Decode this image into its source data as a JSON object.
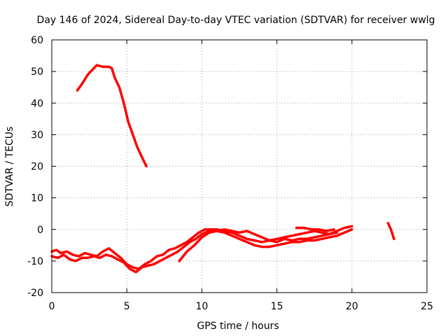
{
  "chart_data": {
    "type": "line",
    "title": "Day 146 of 2024, Sidereal Day-to-day VTEC variation (SDTVAR) for receiver wwlg",
    "xlabel": "GPS time / hours",
    "ylabel": "SDTVAR / TECUs",
    "xlim": [
      0,
      25
    ],
    "ylim": [
      -20,
      60
    ],
    "xticks": [
      "0",
      "5",
      "10",
      "15",
      "20",
      "25"
    ],
    "yticks": [
      "-20",
      "-10",
      "0",
      "10",
      "20",
      "30",
      "40",
      "50",
      "60"
    ],
    "grid": true,
    "series": [
      {
        "name": "early-track",
        "color": "#ff0000",
        "x": [
          1.7,
          2.0,
          2.4,
          2.8,
          3.0,
          3.4,
          3.8,
          4.0,
          4.2,
          4.5,
          4.8,
          5.1,
          5.4,
          5.7,
          6.0,
          6.3
        ],
        "y": [
          44,
          46,
          49,
          51,
          52,
          51.5,
          51.5,
          51,
          48,
          45,
          40,
          34,
          30,
          26,
          23,
          20
        ]
      },
      {
        "name": "main-track-a",
        "color": "#ff0000",
        "x": [
          0,
          0.3,
          0.6,
          1.0,
          1.4,
          1.8,
          2.2,
          2.6,
          3.0,
          3.4,
          3.8,
          4.2,
          4.6,
          5.0,
          5.4,
          5.8,
          6.2,
          6.6,
          7.0,
          7.4,
          7.8,
          8.2,
          8.6,
          9.0,
          9.4,
          9.8,
          10.2,
          10.6,
          11.0,
          11.5,
          12.0,
          12.5,
          13.0,
          13.5,
          14.0,
          14.5,
          15.0,
          15.5,
          16.0,
          16.5,
          17.0,
          17.5,
          18.0,
          18.5,
          19.0,
          19.5,
          20.0
        ],
        "y": [
          -7,
          -6.5,
          -7.5,
          -7,
          -8,
          -8.5,
          -7.5,
          -8,
          -8.5,
          -7,
          -6,
          -7.5,
          -9,
          -11,
          -12,
          -12.5,
          -11,
          -10,
          -8.5,
          -8,
          -6.5,
          -6,
          -5,
          -4,
          -2.5,
          -1,
          0,
          0,
          0,
          -0.5,
          -1,
          -2,
          -3,
          -3.5,
          -4,
          -3.5,
          -4,
          -3,
          -3.5,
          -3,
          -3,
          -2.5,
          -2,
          -1.5,
          -0.5,
          0.5,
          1
        ]
      },
      {
        "name": "main-track-b",
        "color": "#ff0000",
        "x": [
          0,
          0.4,
          0.8,
          1.2,
          1.6,
          2.0,
          2.4,
          2.8,
          3.2,
          3.6,
          4.0,
          4.4,
          4.8,
          5.2,
          5.6,
          6.0,
          6.4,
          6.8,
          7.2,
          7.6,
          8.0,
          8.4,
          8.8,
          9.2,
          9.6,
          10.0,
          10.5,
          11.0,
          11.5,
          12.0,
          12.5,
          13.0,
          13.5,
          14.0,
          14.5,
          15.0,
          15.5,
          16.0,
          16.5,
          17.0,
          17.5,
          18.0,
          18.5,
          19.0,
          19.5,
          20.0
        ],
        "y": [
          -8.5,
          -9,
          -8,
          -9.5,
          -10,
          -9,
          -9,
          -8.5,
          -9,
          -8,
          -8.5,
          -9.5,
          -10.5,
          -12.5,
          -13.5,
          -12,
          -11.5,
          -11,
          -10,
          -9,
          -8,
          -7,
          -5.5,
          -4,
          -3,
          -1.5,
          -0.5,
          -0.5,
          -1,
          -2,
          -3,
          -4,
          -5,
          -5.5,
          -5.5,
          -5,
          -4.5,
          -4,
          -4,
          -3.5,
          -3.5,
          -3,
          -2.5,
          -2,
          -1,
          0
        ]
      },
      {
        "name": "main-track-c",
        "color": "#ff0000",
        "x": [
          8.5,
          9.0,
          9.5,
          10.0,
          10.5,
          11.0,
          11.5,
          12.0,
          12.5,
          13.0,
          13.5,
          14.0,
          14.5,
          15.0,
          15.5,
          16.0,
          16.5,
          17.0,
          17.5,
          18.0,
          18.5,
          19.0
        ],
        "y": [
          -10,
          -7,
          -5,
          -2.5,
          -1,
          -0.5,
          0,
          -0.5,
          -1,
          -0.5,
          -1.5,
          -2.5,
          -3.5,
          -3,
          -2.5,
          -2,
          -1.5,
          -1,
          -0.5,
          -1,
          -1.5,
          -1
        ]
      },
      {
        "name": "short-upper-segment",
        "color": "#ff0000",
        "x": [
          16.3,
          16.8,
          17.3,
          17.8,
          18.3,
          18.8
        ],
        "y": [
          0.5,
          0.5,
          0,
          0,
          -0.5,
          0
        ]
      },
      {
        "name": "late-track",
        "color": "#ff0000",
        "x": [
          22.4,
          22.6,
          22.8
        ],
        "y": [
          2,
          0,
          -3
        ]
      }
    ]
  }
}
